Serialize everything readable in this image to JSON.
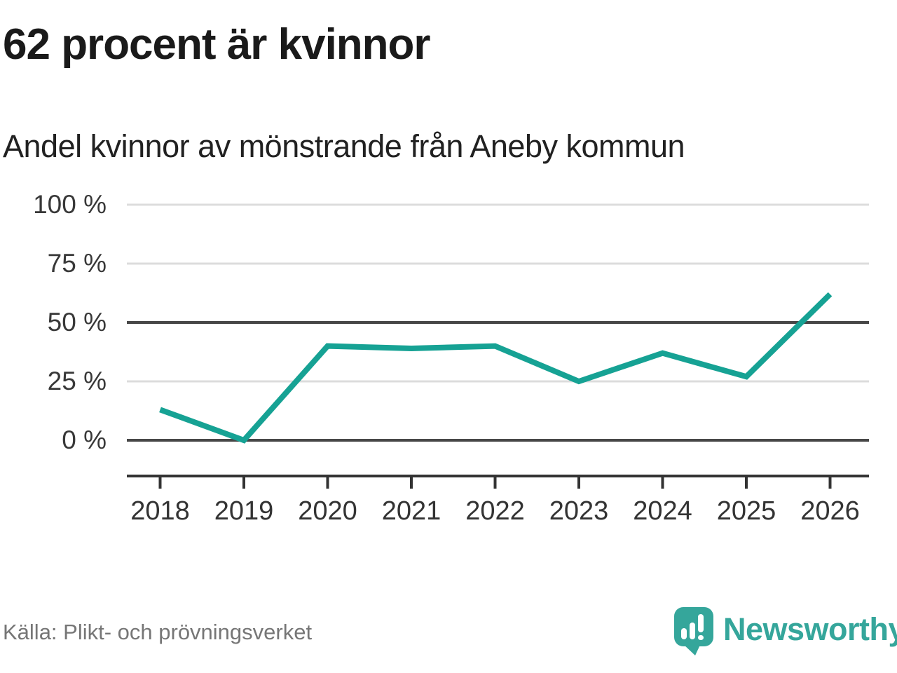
{
  "header": {
    "title": "62 procent är kvinnor",
    "subtitle": "Andel kvinnor av mönstrande från Aneby kommun"
  },
  "chart_data": {
    "type": "line",
    "title": "62 procent är kvinnor",
    "subtitle": "Andel kvinnor av mönstrande från Aneby kommun",
    "categories": [
      "2018",
      "2019",
      "2020",
      "2021",
      "2022",
      "2023",
      "2024",
      "2025",
      "2026"
    ],
    "series": [
      {
        "name": "Andel kvinnor av mönstrande",
        "values": [
          13,
          0,
          40,
          39,
          40,
          25,
          37,
          27,
          62
        ]
      }
    ],
    "unit": "%",
    "xlabel": "",
    "ylabel": "",
    "ylim": [
      0,
      100
    ],
    "yticks": [
      0,
      25,
      50,
      75,
      100
    ],
    "ytick_labels": [
      "0 %",
      "25 %",
      "50 %",
      "75 %",
      "100 %"
    ],
    "emphasized_gridlines": [
      0,
      50
    ],
    "grid": "horizontal-only",
    "legend": "none",
    "line_color": "#16a294"
  },
  "footer": {
    "source": "Källa: Plikt- och prövningsverket",
    "brand": "Newsworthy"
  },
  "colors": {
    "accent": "#16a294",
    "grid_light": "#dcdcdc",
    "grid_dark": "#474747",
    "axis": "#333333",
    "text_main": "#1a1a1a",
    "text_muted": "#767676",
    "brand": "#35a69b"
  }
}
